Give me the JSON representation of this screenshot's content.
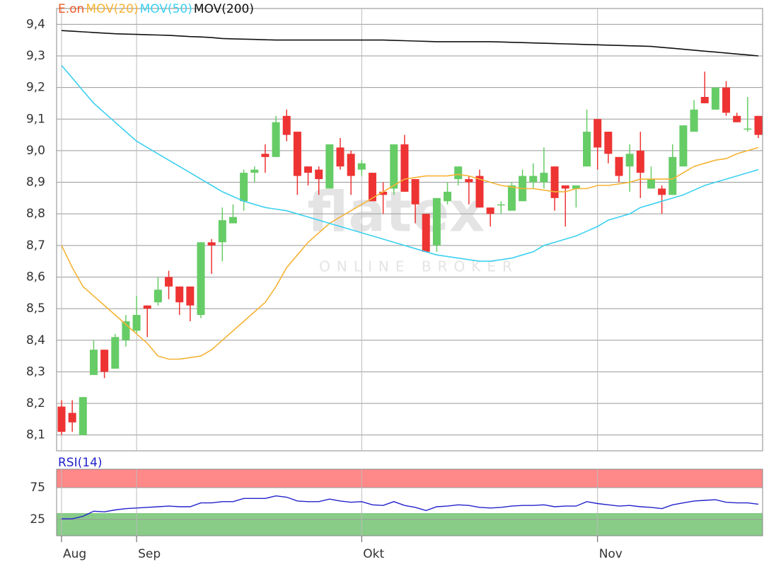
{
  "chart_data": [
    {
      "type": "candlestick",
      "categories": [
        "Aug",
        null,
        null,
        null,
        null,
        null,
        null,
        "Sep",
        null,
        null,
        null,
        null,
        null,
        null,
        null,
        null,
        null,
        null,
        null,
        null,
        null,
        null,
        null,
        null,
        null,
        null,
        null,
        null,
        "Okt",
        null,
        null,
        null,
        null,
        null,
        null,
        null,
        null,
        null,
        null,
        null,
        null,
        null,
        null,
        null,
        null,
        null,
        null,
        null,
        null,
        null,
        "Nov",
        null,
        null,
        null,
        null,
        null,
        null,
        null,
        null,
        null,
        null,
        null,
        null,
        null,
        null,
        null
      ],
      "series": [
        {
          "name": "E.on",
          "color": "#f05a28",
          "up_color": "#66cc66",
          "down_color": "#ee3333",
          "open": [
            8.19,
            8.17,
            8.1,
            8.29,
            8.37,
            8.31,
            8.4,
            8.43,
            8.51,
            8.52,
            8.6,
            8.57,
            8.57,
            8.48,
            8.71,
            8.71,
            8.77,
            8.84,
            8.93,
            8.99,
            8.98,
            9.11,
            9.06,
            8.95,
            8.94,
            8.88,
            9.01,
            8.99,
            8.94,
            8.93,
            8.87,
            8.88,
            9.02,
            8.91,
            8.8,
            8.7,
            8.84,
            8.91,
            8.91,
            8.92,
            8.82,
            8.83,
            8.81,
            8.84,
            8.9,
            8.9,
            8.95,
            8.89,
            8.88,
            8.95,
            9.1,
            9.06,
            8.98,
            8.95,
            9.0,
            8.88,
            8.88,
            8.86,
            8.95,
            9.06,
            9.17,
            9.13,
            9.2,
            9.11,
            9.07,
            9.11
          ],
          "high": [
            8.21,
            8.21,
            8.22,
            8.4,
            8.37,
            8.42,
            8.48,
            8.54,
            8.51,
            8.6,
            8.62,
            8.57,
            8.57,
            8.71,
            8.72,
            8.82,
            8.83,
            8.94,
            8.95,
            9.02,
            9.11,
            9.13,
            9.06,
            8.95,
            8.95,
            9.02,
            9.04,
            9.0,
            8.97,
            8.93,
            8.9,
            9.02,
            9.05,
            8.91,
            8.8,
            8.85,
            8.9,
            8.95,
            8.92,
            8.94,
            8.82,
            8.84,
            8.9,
            8.94,
            8.96,
            9.01,
            8.95,
            8.89,
            8.89,
            9.13,
            9.1,
            9.06,
            8.98,
            9.02,
            9.06,
            8.95,
            8.89,
            9.02,
            9.08,
            9.16,
            9.25,
            9.2,
            9.22,
            9.12,
            9.17,
            9.11
          ],
          "low": [
            8.1,
            8.11,
            8.1,
            8.29,
            8.28,
            8.31,
            8.38,
            8.42,
            8.41,
            8.51,
            8.53,
            8.48,
            8.46,
            8.47,
            8.61,
            8.65,
            8.77,
            8.81,
            8.9,
            8.93,
            8.98,
            9.03,
            8.86,
            8.89,
            8.86,
            8.88,
            8.94,
            8.86,
            8.92,
            8.84,
            8.8,
            8.86,
            8.87,
            8.77,
            8.68,
            8.68,
            8.83,
            8.89,
            8.83,
            8.82,
            8.76,
            8.8,
            8.81,
            8.84,
            8.88,
            8.88,
            8.81,
            8.76,
            8.82,
            8.95,
            8.94,
            8.96,
            8.9,
            8.87,
            8.85,
            8.88,
            8.8,
            8.86,
            8.95,
            9.06,
            9.15,
            9.13,
            9.11,
            9.09,
            9.06,
            9.04
          ],
          "close": [
            8.11,
            8.14,
            8.22,
            8.37,
            8.3,
            8.41,
            8.46,
            8.48,
            8.5,
            8.56,
            8.57,
            8.52,
            8.51,
            8.71,
            8.7,
            8.78,
            8.79,
            8.93,
            8.94,
            8.98,
            9.09,
            9.05,
            8.92,
            8.93,
            8.91,
            9.02,
            8.95,
            8.92,
            8.96,
            8.84,
            8.86,
            9.02,
            8.87,
            8.83,
            8.68,
            8.85,
            8.87,
            8.95,
            8.9,
            8.82,
            8.8,
            8.83,
            8.89,
            8.92,
            8.92,
            8.93,
            8.85,
            8.88,
            8.89,
            9.06,
            9.01,
            8.99,
            8.92,
            8.99,
            8.93,
            8.91,
            8.86,
            8.98,
            9.08,
            9.13,
            9.15,
            9.2,
            9.12,
            9.09,
            9.07,
            9.05
          ]
        },
        {
          "name": "MOV(20)",
          "color": "#f5b335",
          "values": [
            8.7,
            8.63,
            8.57,
            8.54,
            8.51,
            8.48,
            8.45,
            8.42,
            8.39,
            8.35,
            8.34,
            8.34,
            8.345,
            8.35,
            8.37,
            8.4,
            8.43,
            8.46,
            8.49,
            8.52,
            8.57,
            8.63,
            8.67,
            8.71,
            8.74,
            8.77,
            8.79,
            8.81,
            8.83,
            8.85,
            8.87,
            8.89,
            8.91,
            8.915,
            8.92,
            8.92,
            8.92,
            8.925,
            8.92,
            8.91,
            8.9,
            8.89,
            8.885,
            8.88,
            8.88,
            8.875,
            8.87,
            8.87,
            8.88,
            8.88,
            8.89,
            8.89,
            8.895,
            8.9,
            8.91,
            8.91,
            8.91,
            8.91,
            8.93,
            8.95,
            8.96,
            8.97,
            8.975,
            8.99,
            9.0,
            9.01
          ]
        },
        {
          "name": "MOV(50)",
          "color": "#3cd0f0",
          "values": [
            9.27,
            9.23,
            9.19,
            9.15,
            9.12,
            9.09,
            9.06,
            9.03,
            9.01,
            8.99,
            8.97,
            8.95,
            8.93,
            8.91,
            8.89,
            8.87,
            8.855,
            8.84,
            8.83,
            8.82,
            8.815,
            8.81,
            8.8,
            8.79,
            8.78,
            8.77,
            8.76,
            8.75,
            8.74,
            8.73,
            8.72,
            8.71,
            8.7,
            8.69,
            8.68,
            8.67,
            8.665,
            8.66,
            8.655,
            8.65,
            8.65,
            8.655,
            8.66,
            8.67,
            8.68,
            8.7,
            8.71,
            8.72,
            8.73,
            8.745,
            8.76,
            8.78,
            8.79,
            8.8,
            8.82,
            8.83,
            8.84,
            8.85,
            8.86,
            8.875,
            8.89,
            8.9,
            8.91,
            8.92,
            8.93,
            8.94
          ]
        },
        {
          "name": "MOV(200)",
          "color": "#111111",
          "values": [
            9.38,
            9.378,
            9.376,
            9.374,
            9.372,
            9.37,
            9.369,
            9.368,
            9.367,
            9.366,
            9.365,
            9.363,
            9.361,
            9.36,
            9.358,
            9.355,
            9.354,
            9.353,
            9.352,
            9.351,
            9.35,
            9.35,
            9.35,
            9.35,
            9.35,
            9.35,
            9.35,
            9.35,
            9.35,
            9.35,
            9.35,
            9.349,
            9.348,
            9.347,
            9.346,
            9.345,
            9.345,
            9.345,
            9.345,
            9.345,
            9.345,
            9.344,
            9.343,
            9.342,
            9.341,
            9.34,
            9.339,
            9.338,
            9.337,
            9.336,
            9.335,
            9.334,
            9.333,
            9.332,
            9.331,
            9.33,
            9.327,
            9.324,
            9.321,
            9.318,
            9.315,
            9.312,
            9.309,
            9.306,
            9.303,
            9.3
          ]
        }
      ],
      "ylim": [
        8.05,
        9.45
      ],
      "yticks": [
        {
          "value": 8.1,
          "label": "8,1"
        },
        {
          "value": 8.2,
          "label": "8,2"
        },
        {
          "value": 8.3,
          "label": "8,3"
        },
        {
          "value": 8.4,
          "label": "8,4"
        },
        {
          "value": 8.5,
          "label": "8,5"
        },
        {
          "value": 8.6,
          "label": "8,6"
        },
        {
          "value": 8.7,
          "label": "8,7"
        },
        {
          "value": 8.8,
          "label": "8,8"
        },
        {
          "value": 8.9,
          "label": "8,9"
        },
        {
          "value": 9.0,
          "label": "9,0"
        },
        {
          "value": 9.1,
          "label": "9,1"
        },
        {
          "value": 9.2,
          "label": "9,2"
        },
        {
          "value": 9.3,
          "label": "9,3"
        },
        {
          "value": 9.4,
          "label": "9,4"
        }
      ],
      "grid": true,
      "watermark": {
        "brand": "flatex",
        "tagline": "ONLINE BROKER"
      }
    },
    {
      "type": "line",
      "series": [
        {
          "name": "RSI(14)",
          "color": "#2222cc",
          "values": [
            26,
            26,
            30,
            38,
            37,
            40,
            42,
            43,
            44,
            45,
            46,
            45,
            45,
            51,
            51,
            53,
            53,
            58,
            58,
            58,
            62,
            60,
            54,
            53,
            53,
            57,
            54,
            52,
            53,
            48,
            47,
            53,
            47,
            44,
            39,
            45,
            46,
            48,
            47,
            44,
            43,
            44,
            46,
            47,
            47,
            48,
            45,
            46,
            46,
            53,
            50,
            48,
            46,
            47,
            45,
            44,
            42,
            48,
            51,
            54,
            55,
            56,
            52,
            51,
            51,
            49
          ]
        }
      ],
      "ylim": [
        0,
        100
      ],
      "yticks": [
        25,
        75
      ]
    }
  ]
}
